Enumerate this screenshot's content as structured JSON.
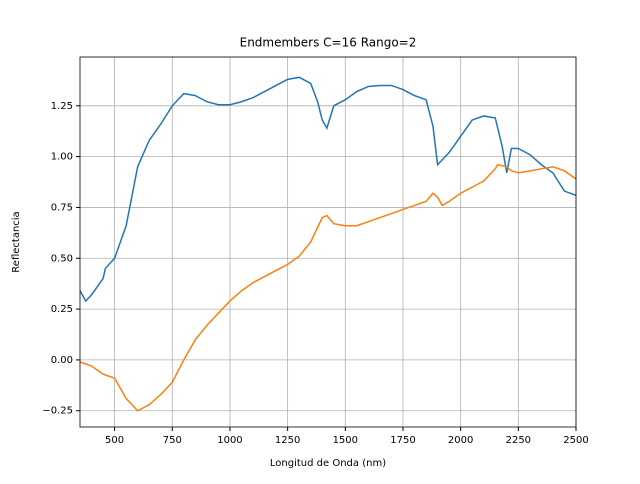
{
  "chart_data": {
    "type": "line",
    "title": "Endmembers C=16 Rango=2",
    "x_label": "Longitud de Onda (nm)",
    "y_label": "Reflectancia",
    "xlim": [
      350,
      2500
    ],
    "ylim": [
      -0.33,
      1.49
    ],
    "xticks": [
      500,
      750,
      1000,
      1250,
      1500,
      1750,
      2000,
      2250,
      2500
    ],
    "yticks": [
      {
        "value": -0.25,
        "label": "−0.25"
      },
      {
        "value": 0,
        "label": "0.00"
      },
      0.25,
      {
        "value": 0.5,
        "label": "0.50"
      },
      0.75,
      {
        "value": 1,
        "label": "1.00"
      },
      1.25
    ],
    "grid": true,
    "series": [
      {
        "color": "#1f77b4",
        "x": [
          350,
          375,
          400,
          450,
          460,
          500,
          550,
          600,
          650,
          700,
          750,
          800,
          850,
          900,
          950,
          1000,
          1050,
          1100,
          1150,
          1200,
          1250,
          1300,
          1350,
          1380,
          1400,
          1420,
          1450,
          1500,
          1550,
          1600,
          1650,
          1700,
          1750,
          1800,
          1850,
          1880,
          1900,
          1950,
          2000,
          2050,
          2100,
          2150,
          2180,
          2200,
          2220,
          2250,
          2300,
          2350,
          2400,
          2450,
          2500
        ],
        "values": [
          0.34,
          0.29,
          0.32,
          0.4,
          0.45,
          0.5,
          0.66,
          0.95,
          1.08,
          1.16,
          1.25,
          1.31,
          1.3,
          1.27,
          1.255,
          1.255,
          1.27,
          1.29,
          1.32,
          1.35,
          1.38,
          1.39,
          1.36,
          1.27,
          1.18,
          1.14,
          1.25,
          1.28,
          1.32,
          1.345,
          1.35,
          1.35,
          1.33,
          1.3,
          1.28,
          1.15,
          0.96,
          1.02,
          1.1,
          1.18,
          1.2,
          1.19,
          1.05,
          0.92,
          1.04,
          1.04,
          1.01,
          0.96,
          0.92,
          0.83,
          0.81
        ]
      },
      {
        "color": "#ff7f0e",
        "x": [
          350,
          375,
          400,
          450,
          500,
          550,
          600,
          650,
          700,
          750,
          800,
          850,
          900,
          1000,
          1050,
          1100,
          1150,
          1200,
          1250,
          1300,
          1350,
          1400,
          1420,
          1450,
          1500,
          1550,
          1600,
          1650,
          1700,
          1750,
          1800,
          1850,
          1880,
          1900,
          1920,
          1950,
          2000,
          2050,
          2100,
          2150,
          2160,
          2200,
          2220,
          2250,
          2300,
          2350,
          2400,
          2450,
          2500
        ],
        "values": [
          -0.01,
          -0.02,
          -0.03,
          -0.07,
          -0.09,
          -0.19,
          -0.25,
          -0.22,
          -0.17,
          -0.11,
          0.0,
          0.1,
          0.17,
          0.29,
          0.34,
          0.38,
          0.41,
          0.44,
          0.47,
          0.51,
          0.58,
          0.7,
          0.71,
          0.67,
          0.66,
          0.66,
          0.68,
          0.7,
          0.72,
          0.74,
          0.76,
          0.78,
          0.82,
          0.8,
          0.76,
          0.78,
          0.82,
          0.85,
          0.88,
          0.94,
          0.96,
          0.95,
          0.93,
          0.92,
          0.93,
          0.94,
          0.95,
          0.93,
          0.89
        ]
      }
    ]
  }
}
